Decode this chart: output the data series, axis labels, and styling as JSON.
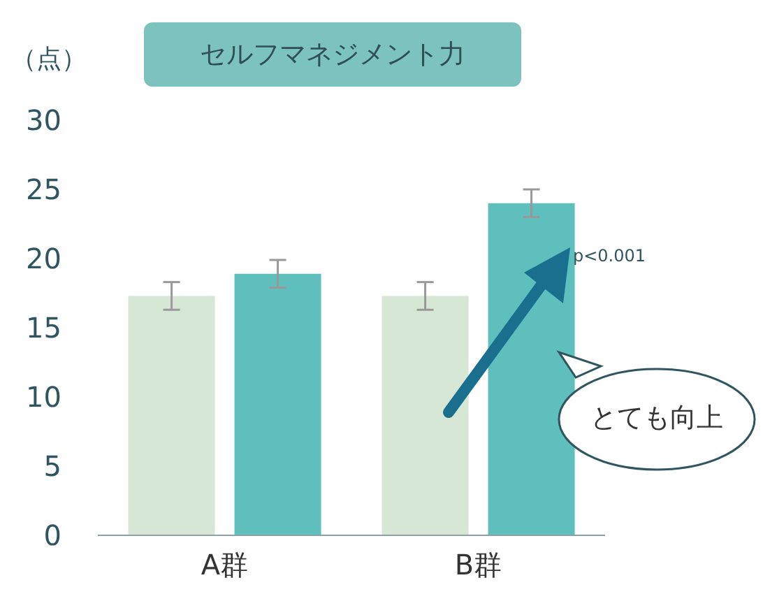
{
  "chart_data": {
    "type": "bar",
    "title": "セルフマネジメント力",
    "ylabel": "（点）",
    "categories": [
      "A群",
      "B群"
    ],
    "series": [
      {
        "color": "#d6e7d6",
        "values": [
          17.3,
          17.3
        ],
        "errors": [
          1,
          1
        ]
      },
      {
        "color": "#5fbfbd",
        "values": [
          18.9,
          24.0
        ],
        "errors": [
          1,
          1
        ]
      }
    ],
    "ylim": [
      0,
      30
    ],
    "yticks": [
      0,
      5,
      10,
      15,
      20,
      25,
      30
    ],
    "grid": false,
    "legend": false,
    "annotations": [
      "p<0.001",
      "とても向上"
    ]
  }
}
